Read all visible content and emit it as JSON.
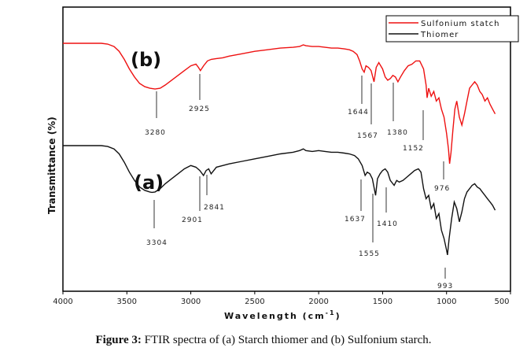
{
  "chart_data": {
    "type": "line",
    "title": "",
    "xlabel": "Wavelength (cm",
    "xlabel_sup": "-1",
    "xlabel_close": ")",
    "ylabel": "Transmittance (%)",
    "xlim": [
      4000,
      500
    ],
    "x_ticks": [
      4000,
      3500,
      3000,
      2500,
      2000,
      1500,
      1000,
      500
    ],
    "legend": {
      "position": "top-right",
      "entries": [
        "Sulfonium statch",
        "Thiomer"
      ]
    },
    "series": [
      {
        "name": "Sulfonium statch",
        "color": "#ee1111",
        "panel_label": "(b)",
        "x": [
          4000,
          3800,
          3700,
          3650,
          3600,
          3560,
          3520,
          3480,
          3440,
          3400,
          3360,
          3320,
          3280,
          3240,
          3200,
          3150,
          3100,
          3050,
          3000,
          2960,
          2940,
          2925,
          2900,
          2870,
          2840,
          2800,
          2750,
          2700,
          2600,
          2500,
          2400,
          2300,
          2200,
          2150,
          2120,
          2100,
          2050,
          2000,
          1950,
          1900,
          1850,
          1800,
          1760,
          1730,
          1700,
          1680,
          1660,
          1644,
          1630,
          1610,
          1590,
          1567,
          1550,
          1530,
          1500,
          1480,
          1460,
          1440,
          1420,
          1400,
          1380,
          1360,
          1330,
          1300,
          1270,
          1240,
          1210,
          1180,
          1160,
          1152,
          1140,
          1120,
          1100,
          1080,
          1060,
          1040,
          1020,
          1000,
          985,
          976,
          965,
          950,
          935,
          920,
          900,
          880,
          860,
          840,
          820,
          800,
          780,
          760,
          740,
          720,
          700,
          680,
          660,
          640,
          620
        ],
        "values": [
          96,
          96,
          96,
          95.5,
          94,
          91,
          86,
          80,
          75,
          71,
          69,
          68,
          67.5,
          68,
          70,
          73,
          76,
          79,
          82,
          83,
          81,
          79,
          82,
          85,
          86,
          86.5,
          87,
          88,
          89.5,
          91,
          92,
          93,
          93.5,
          94,
          95,
          94.5,
          94,
          94,
          93.5,
          93,
          93,
          92.5,
          92,
          91,
          89,
          85,
          80,
          78,
          82,
          81,
          79,
          72,
          81,
          84,
          80,
          75,
          73,
          74,
          76,
          75,
          72,
          75,
          79,
          82,
          83,
          85,
          85,
          80,
          70,
          62,
          68,
          63,
          66,
          60,
          62,
          55,
          50,
          40,
          30,
          21,
          28,
          42,
          55,
          60,
          50,
          45,
          52,
          60,
          68,
          70,
          72,
          70,
          66,
          64,
          60,
          62,
          58,
          55,
          52
        ]
      },
      {
        "name": "Thiomer",
        "color": "#111111",
        "panel_label": "(a)",
        "x": [
          4000,
          3800,
          3700,
          3650,
          3600,
          3560,
          3520,
          3480,
          3440,
          3400,
          3360,
          3320,
          3304,
          3280,
          3240,
          3200,
          3150,
          3100,
          3050,
          3000,
          2960,
          2930,
          2901,
          2880,
          2860,
          2841,
          2820,
          2800,
          2750,
          2700,
          2600,
          2500,
          2400,
          2300,
          2200,
          2150,
          2120,
          2100,
          2050,
          2000,
          1950,
          1900,
          1850,
          1800,
          1760,
          1720,
          1690,
          1660,
          1637,
          1620,
          1600,
          1580,
          1555,
          1540,
          1520,
          1500,
          1480,
          1460,
          1440,
          1410,
          1390,
          1370,
          1340,
          1310,
          1280,
          1250,
          1220,
          1200,
          1180,
          1160,
          1140,
          1120,
          1100,
          1080,
          1060,
          1040,
          1020,
          1000,
          993,
          980,
          960,
          940,
          920,
          900,
          880,
          860,
          840,
          820,
          800,
          780,
          760,
          740,
          720,
          700,
          680,
          660,
          640,
          620
        ],
        "values": [
          96,
          96,
          96,
          95.5,
          94,
          91,
          86,
          80,
          75,
          71,
          69,
          68,
          67.8,
          68,
          70,
          73,
          76,
          79,
          82,
          84,
          83,
          81,
          78,
          81,
          82,
          79,
          81,
          83,
          84,
          85,
          86.5,
          88,
          89.5,
          91,
          92,
          93,
          94,
          93,
          92.5,
          93,
          92.5,
          92,
          92,
          91.5,
          91,
          90,
          88,
          84,
          78,
          80,
          79,
          76,
          66,
          76,
          79,
          81,
          82,
          80,
          75,
          72,
          75,
          74,
          75,
          77,
          79,
          81,
          82,
          80,
          70,
          64,
          66,
          58,
          61,
          52,
          55,
          45,
          40,
          33,
          30,
          40,
          52,
          62,
          58,
          50,
          56,
          64,
          68,
          70,
          72,
          73,
          71,
          70,
          68,
          66,
          64,
          62,
          60,
          57
        ]
      }
    ],
    "peak_labels": {
      "b": [
        "3280",
        "2925",
        "1644",
        "1567",
        "1380",
        "1152",
        "976"
      ],
      "a": [
        "3304",
        "2901",
        "2841",
        "1637",
        "1555",
        "1410",
        "993"
      ]
    }
  },
  "caption": {
    "label": "Figure 3:",
    "text": " FTIR spectra of (a) Starch thiomer and (b) Sulfonium starch."
  }
}
